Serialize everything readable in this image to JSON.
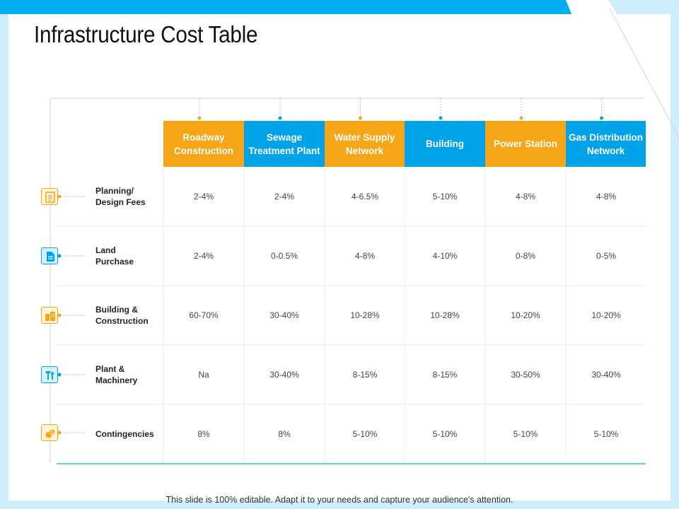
{
  "title": "Infrastructure Cost Table",
  "footer": "This slide is 100% editable. Adapt it to your needs and capture your audience's attention.",
  "colors": {
    "orange": "#f5a516",
    "blue": "#00a2e8",
    "top_bar": "#00adef"
  },
  "columns": [
    {
      "label": "Roadway Construction",
      "color": "orange"
    },
    {
      "label": "Sewage Treatment Plant",
      "color": "blue"
    },
    {
      "label": "Water Supply Network",
      "color": "orange"
    },
    {
      "label": "Building",
      "color": "blue"
    },
    {
      "label": "Power Station",
      "color": "orange"
    },
    {
      "label": "Gas Distribution Network",
      "color": "blue"
    }
  ],
  "rows": [
    {
      "label": "Planning/ Design Fees",
      "icon": "document-icon",
      "color": "orange",
      "values": [
        "2-4%",
        "2-4%",
        "4-6.5%",
        "5-10%",
        "4-8%",
        "4-8%"
      ]
    },
    {
      "label": "Land Purchase",
      "icon": "file-icon",
      "color": "blue",
      "values": [
        "2-4%",
        "0-0.5%",
        "4-8%",
        "4-10%",
        "0-8%",
        "0-5%"
      ]
    },
    {
      "label": "Building & Construction",
      "icon": "building-icon",
      "color": "orange",
      "values": [
        "60-70%",
        "30-40%",
        "10-28%",
        "10-28%",
        "10-20%",
        "10-20%"
      ]
    },
    {
      "label": "Plant & Machinery",
      "icon": "tools-icon",
      "color": "blue",
      "values": [
        "Na",
        "30-40%",
        "8-15%",
        "8-15%",
        "30-50%",
        "30-40%"
      ]
    },
    {
      "label": "Contingencies",
      "icon": "coins-icon",
      "color": "orange",
      "values": [
        "8%",
        "8%",
        "5-10%",
        "5-10%",
        "5-10%",
        "5-10%"
      ]
    }
  ]
}
